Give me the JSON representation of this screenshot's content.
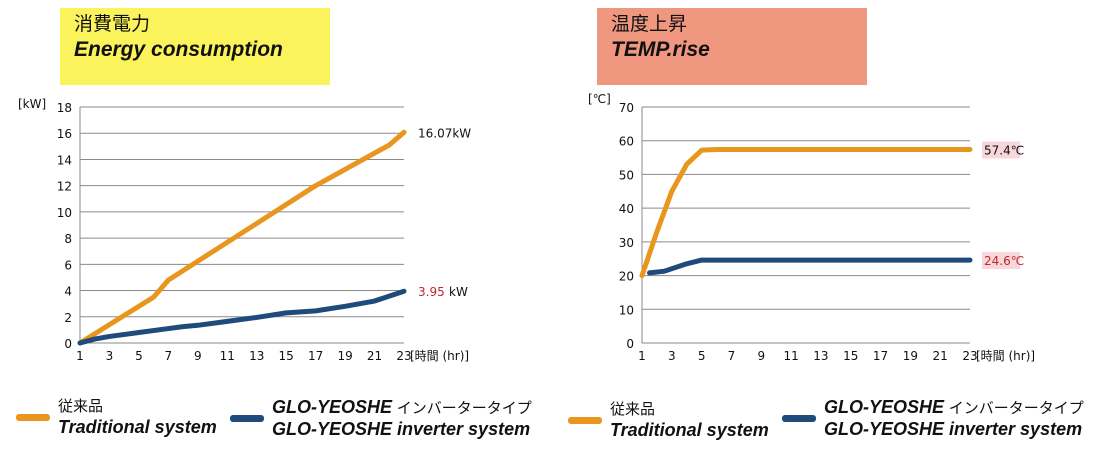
{
  "colors": {
    "traditional": "#E8961E",
    "inverter": "#1F4A7C",
    "title1_bg": "#FBF35C",
    "title2_bg": "#F0977F",
    "annot_red": "#C0282D",
    "annot_bg": "#F8D7DA"
  },
  "panel1": {
    "title_jp": "消費電力",
    "title_en": "Energy consumption"
  },
  "panel2": {
    "title_jp": "温度上昇",
    "title_en": "TEMP.rise"
  },
  "legend": {
    "traditional_jp": "従来品",
    "traditional_en": "Traditional system",
    "inverter_jp": "GLO-YEOSHE インバータータイプ",
    "inverter_brand": "GLO-YEOSHE",
    "inverter_jp_suffix": " インバータータイプ",
    "inverter_en": "GLO-YEOSHE inverter system"
  },
  "chart_data": [
    {
      "type": "line",
      "title": "",
      "ylabel": "[kW]",
      "xlabel": "[時間 (hr)]",
      "ylim": [
        0,
        18
      ],
      "yticks": [
        0,
        2,
        4,
        6,
        8,
        10,
        12,
        14,
        16,
        18
      ],
      "xlim": [
        1,
        23
      ],
      "xticks": [
        1,
        3,
        5,
        7,
        9,
        11,
        13,
        15,
        17,
        19,
        21,
        23
      ],
      "grid": true,
      "series": [
        {
          "name": "従来品 Traditional system",
          "color_key": "traditional",
          "x": [
            1,
            6,
            7,
            17,
            22,
            23
          ],
          "y": [
            0,
            3.5,
            4.8,
            12,
            15.1,
            16.07
          ]
        },
        {
          "name": "GLO-YEOSHE inverter system",
          "color_key": "inverter",
          "x": [
            1,
            2,
            3,
            5,
            7,
            8,
            9,
            11,
            13,
            15,
            17,
            19,
            21,
            23
          ],
          "y": [
            0,
            0.3,
            0.5,
            0.8,
            1.1,
            1.25,
            1.35,
            1.65,
            1.95,
            2.3,
            2.45,
            2.8,
            3.2,
            3.95
          ]
        }
      ],
      "annotations": [
        {
          "value": "16.07",
          "unit": "kW",
          "series": 0
        },
        {
          "value": "3.95",
          "unit": " kW",
          "series": 1
        }
      ]
    },
    {
      "type": "line",
      "title": "",
      "ylabel": "[℃]",
      "xlabel": "[時間 (hr)]",
      "ylim": [
        0,
        70
      ],
      "yticks": [
        0,
        10,
        20,
        30,
        40,
        50,
        60,
        70
      ],
      "xlim": [
        1,
        23
      ],
      "xticks": [
        1,
        3,
        5,
        7,
        9,
        11,
        13,
        15,
        17,
        19,
        21,
        23
      ],
      "grid": true,
      "series": [
        {
          "name": "従来品 Traditional system",
          "color_key": "traditional",
          "x": [
            1,
            2,
            3,
            4,
            5,
            6,
            23
          ],
          "y": [
            20,
            33,
            45,
            53,
            57.2,
            57.4,
            57.4
          ]
        },
        {
          "name": "GLO-YEOSHE inverter system",
          "color_key": "inverter",
          "x": [
            1.5,
            2.5,
            4,
            5,
            23
          ],
          "y": [
            20.8,
            21.3,
            23.5,
            24.6,
            24.6
          ]
        }
      ],
      "annotations": [
        {
          "value": "57.4℃",
          "unit": "",
          "series": 0
        },
        {
          "value": "24.6℃",
          "unit": "",
          "series": 1
        }
      ]
    }
  ]
}
